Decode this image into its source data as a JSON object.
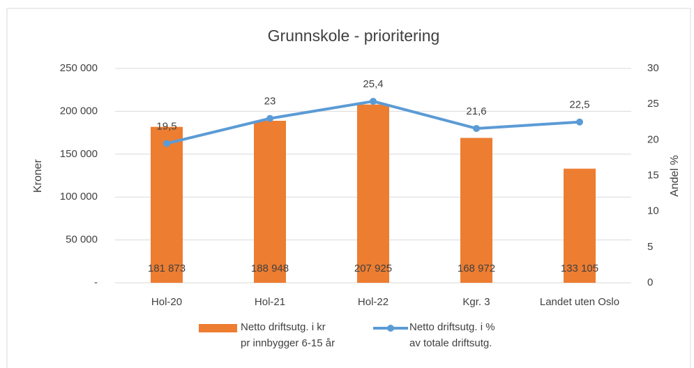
{
  "chart_data": {
    "type": "bar_line",
    "title": "Grunnskole - prioritering",
    "categories": [
      "Hol-20",
      "Hol-21",
      "Hol-22",
      "Kgr. 3",
      "Landet uten Oslo"
    ],
    "series": [
      {
        "name": "Netto driftsutg. i kr\npr innbygger 6-15 år",
        "color": "#ed7d31",
        "type": "bar",
        "values": [
          181873,
          188948,
          207925,
          168972,
          133105
        ],
        "value_labels": [
          "181 873",
          "188 948",
          "207 925",
          "168 972",
          "133 105"
        ]
      },
      {
        "name": "Netto driftsutg. i %\nav totale driftsutg.",
        "color": "#5b9bd5",
        "type": "line",
        "axis": "y2",
        "values": [
          19.5,
          23,
          25.4,
          21.6,
          22.5
        ],
        "value_labels": [
          "19,5",
          "23",
          "25,4",
          "21,6",
          "22,5"
        ]
      }
    ],
    "ylabel": "Kroner",
    "y2label": "Andel %",
    "ylim": [
      0,
      250000
    ],
    "yticks": [
      {
        "value": 0,
        "label": "-"
      },
      {
        "value": 50000,
        "label": "50 000"
      },
      {
        "value": 100000,
        "label": "100 000"
      },
      {
        "value": 150000,
        "label": "150 000"
      },
      {
        "value": 200000,
        "label": "200 000"
      },
      {
        "value": 250000,
        "label": "250 000"
      }
    ],
    "y2lim": [
      0,
      30
    ],
    "y2ticks": [
      0,
      5,
      10,
      15,
      20,
      25,
      30
    ],
    "grid": true,
    "legend": "bottom"
  }
}
